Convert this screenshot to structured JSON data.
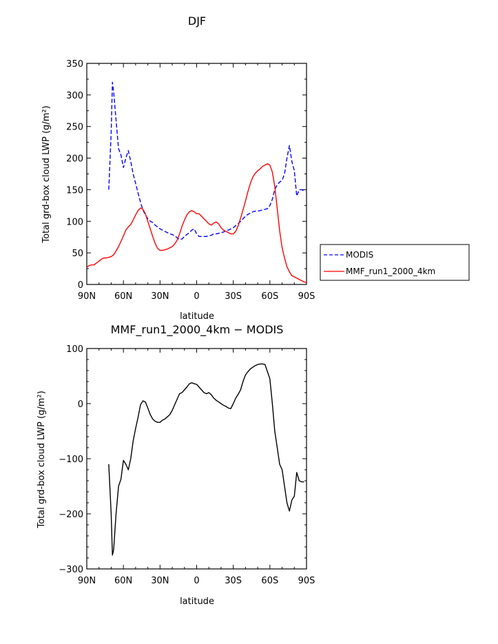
{
  "chart_data": [
    {
      "type": "line",
      "title": "DJF",
      "xlabel": "latitude",
      "ylabel": "Total grd-box cloud LWP (g/m²)",
      "xlim": [
        90,
        -90
      ],
      "ylim": [
        0,
        350
      ],
      "xticks": [
        90,
        60,
        30,
        0,
        -30,
        -60,
        -90
      ],
      "xtick_labels": [
        "90N",
        "60N",
        "30N",
        "0",
        "30S",
        "60S",
        "90S"
      ],
      "yticks": [
        0,
        50,
        100,
        150,
        200,
        250,
        300,
        350
      ],
      "ytick_labels": [
        "0",
        "50",
        "100",
        "150",
        "200",
        "250",
        "300",
        "350"
      ],
      "legend": "right",
      "series": [
        {
          "name": "MODIS",
          "color": "#0000ff",
          "dash": true,
          "x": [
            72,
            70,
            69,
            68,
            66,
            64,
            62,
            60,
            58,
            56,
            54,
            52,
            50,
            48,
            46,
            44,
            42,
            40,
            38,
            36,
            34,
            32,
            30,
            28,
            26,
            24,
            22,
            20,
            18,
            16,
            14,
            12,
            10,
            8,
            6,
            4,
            2,
            0,
            -2,
            -4,
            -6,
            -8,
            -10,
            -12,
            -14,
            -16,
            -18,
            -20,
            -22,
            -24,
            -26,
            -28,
            -30,
            -32,
            -34,
            -36,
            -38,
            -40,
            -42,
            -44,
            -46,
            -48,
            -50,
            -52,
            -54,
            -56,
            -58,
            -60,
            -62,
            -64,
            -66,
            -68,
            -70,
            -72,
            -74,
            -76,
            -78,
            -80,
            -82,
            -84,
            -86,
            -88
          ],
          "y": [
            150,
            240,
            320,
            305,
            260,
            215,
            205,
            185,
            200,
            212,
            195,
            175,
            160,
            145,
            130,
            118,
            110,
            104,
            100,
            98,
            94,
            91,
            88,
            86,
            84,
            82,
            80,
            79,
            77,
            74,
            71,
            72,
            76,
            79,
            82,
            86,
            88,
            80,
            76,
            76,
            76,
            76,
            77,
            78,
            80,
            80,
            81,
            82,
            83,
            85,
            86,
            88,
            90,
            93,
            96,
            100,
            104,
            108,
            111,
            113,
            115,
            116,
            116,
            117,
            118,
            119,
            120,
            125,
            135,
            150,
            158,
            162,
            165,
            175,
            200,
            220,
            195,
            180,
            140,
            150,
            150,
            148
          ]
        },
        {
          "name": "MMF_run1_2000_4km",
          "color": "#ff0000",
          "dash": false,
          "x": [
            90,
            88,
            86,
            84,
            82,
            80,
            78,
            76,
            74,
            72,
            70,
            68,
            66,
            64,
            62,
            60,
            58,
            56,
            54,
            52,
            50,
            48,
            46,
            44,
            42,
            40,
            38,
            36,
            34,
            32,
            30,
            28,
            26,
            24,
            22,
            20,
            18,
            16,
            14,
            12,
            10,
            8,
            6,
            4,
            2,
            0,
            -2,
            -4,
            -6,
            -8,
            -10,
            -12,
            -14,
            -16,
            -18,
            -20,
            -22,
            -24,
            -26,
            -28,
            -30,
            -32,
            -34,
            -36,
            -38,
            -40,
            -42,
            -44,
            -46,
            -48,
            -50,
            -52,
            -54,
            -56,
            -58,
            -60,
            -62,
            -64,
            -66,
            -68,
            -70,
            -72,
            -74,
            -76,
            -78,
            -80,
            -82,
            -84,
            -86,
            -88,
            -90
          ],
          "y": [
            27,
            30,
            31,
            31,
            34,
            37,
            40,
            42,
            42,
            43,
            44,
            47,
            53,
            60,
            68,
            77,
            86,
            91,
            95,
            102,
            110,
            117,
            121,
            119,
            112,
            100,
            88,
            76,
            65,
            57,
            54,
            54,
            55,
            56,
            58,
            60,
            64,
            70,
            80,
            92,
            102,
            110,
            115,
            117,
            115,
            112,
            112,
            108,
            104,
            100,
            96,
            94,
            97,
            99,
            96,
            90,
            86,
            84,
            82,
            80,
            80,
            84,
            93,
            105,
            118,
            132,
            147,
            160,
            170,
            176,
            180,
            183,
            187,
            189,
            191,
            189,
            178,
            155,
            120,
            85,
            58,
            42,
            28,
            20,
            14,
            12,
            10,
            8,
            6,
            4,
            3
          ]
        }
      ]
    },
    {
      "type": "line",
      "title": "MMF_run1_2000_4km − MODIS",
      "xlabel": "latitude",
      "ylabel": "Total grd-box cloud LWP (g/m²)",
      "xlim": [
        90,
        -90
      ],
      "ylim": [
        -300,
        100
      ],
      "xticks": [
        90,
        60,
        30,
        0,
        -30,
        -60,
        -90
      ],
      "xtick_labels": [
        "90N",
        "60N",
        "30N",
        "0",
        "30S",
        "60S",
        "90S"
      ],
      "yticks": [
        -300,
        -200,
        -100,
        0,
        100
      ],
      "ytick_labels": [
        "−300",
        "−200",
        "−100",
        "0",
        "100"
      ],
      "series": [
        {
          "color": "#000000",
          "dash": false,
          "x": [
            72,
            70,
            69,
            68,
            66,
            64,
            62,
            60,
            58,
            56,
            54,
            52,
            50,
            48,
            46,
            44,
            42,
            40,
            38,
            36,
            34,
            32,
            30,
            28,
            26,
            24,
            22,
            20,
            18,
            16,
            14,
            12,
            10,
            8,
            6,
            4,
            2,
            0,
            -2,
            -4,
            -6,
            -8,
            -10,
            -12,
            -14,
            -16,
            -18,
            -20,
            -22,
            -24,
            -26,
            -28,
            -30,
            -32,
            -34,
            -36,
            -38,
            -40,
            -42,
            -44,
            -46,
            -48,
            -50,
            -52,
            -54,
            -56,
            -58,
            -60,
            -62,
            -64,
            -66,
            -68,
            -70,
            -72,
            -74,
            -76,
            -78,
            -80,
            -82,
            -84,
            -86,
            -88
          ],
          "y": [
            -110,
            -200,
            -275,
            -265,
            -200,
            -150,
            -137,
            -103,
            -110,
            -120,
            -100,
            -68,
            -45,
            -25,
            -2,
            5,
            3,
            -8,
            -20,
            -28,
            -32,
            -34,
            -34,
            -30,
            -28,
            -24,
            -20,
            -12,
            -2,
            8,
            18,
            20,
            25,
            30,
            36,
            38,
            36,
            35,
            30,
            25,
            20,
            18,
            20,
            16,
            10,
            6,
            3,
            0,
            -3,
            -5,
            -8,
            -9,
            0,
            10,
            17,
            25,
            40,
            52,
            58,
            63,
            66,
            69,
            71,
            72,
            72,
            71,
            58,
            45,
            0,
            -50,
            -80,
            -110,
            -120,
            -150,
            -180,
            -195,
            -175,
            -168,
            -125,
            -140,
            -142,
            -142
          ]
        }
      ]
    }
  ],
  "legend": {
    "entries": [
      "MODIS",
      "MMF_run1_2000_4km"
    ]
  }
}
